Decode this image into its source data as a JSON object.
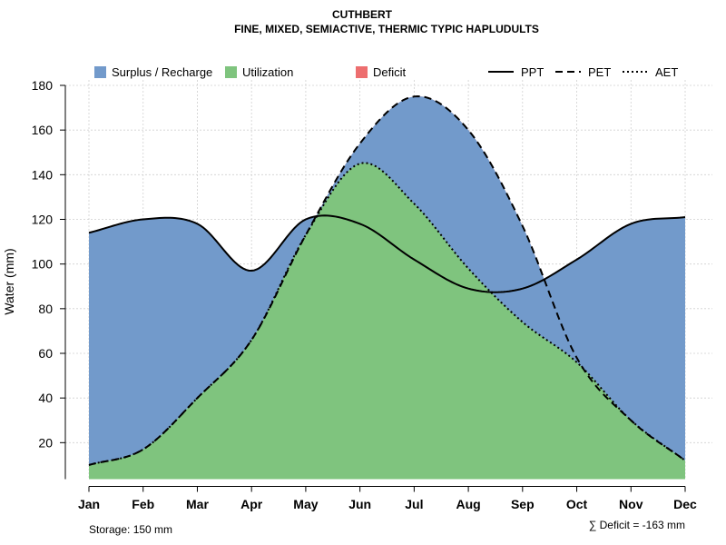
{
  "chart_data": {
    "type": "area",
    "title": "CUTHBERT",
    "subtitle": "FINE, MIXED, SEMIACTIVE, THERMIC TYPIC HAPLUDULTS",
    "ylabel": "Water (mm)",
    "xlabel": "",
    "ylim": [
      0,
      180
    ],
    "yticks": [
      "20",
      "40",
      "60",
      "80",
      "100",
      "120",
      "140",
      "160",
      "180"
    ],
    "categories": [
      "Jan",
      "Feb",
      "Mar",
      "Apr",
      "May",
      "Jun",
      "Jul",
      "Aug",
      "Sep",
      "Oct",
      "Nov",
      "Dec"
    ],
    "series": [
      {
        "name": "PPT",
        "style": "solid",
        "values": [
          114,
          120,
          118,
          97,
          120,
          118,
          102,
          89,
          89,
          102,
          118,
          121
        ]
      },
      {
        "name": "PET",
        "style": "dashed",
        "values": [
          10,
          17,
          40,
          66,
          113,
          154,
          175,
          160,
          117,
          58,
          30,
          12
        ]
      },
      {
        "name": "AET",
        "style": "dotted",
        "values": [
          10,
          17,
          40,
          66,
          113,
          145,
          127,
          98,
          74,
          56,
          30,
          12
        ]
      }
    ],
    "legend": [
      {
        "label": "Surplus / Recharge",
        "kind": "fill",
        "color": "#729ACB"
      },
      {
        "label": "Utilization",
        "kind": "fill",
        "color": "#7FC47E"
      },
      {
        "label": "Deficit",
        "kind": "fill",
        "color": "#ED6E6F"
      },
      {
        "label": "PPT",
        "kind": "line",
        "dash": "solid"
      },
      {
        "label": "PET",
        "kind": "line",
        "dash": "dashed"
      },
      {
        "label": "AET",
        "kind": "line",
        "dash": "dotted"
      }
    ],
    "colors": {
      "surplus": "#729ACB",
      "utilization": "#7FC47E",
      "deficit": "#ED6E6F"
    },
    "storage_text": "Storage: 150 mm",
    "deficit_text": "∑ Deficit = -163 mm"
  }
}
